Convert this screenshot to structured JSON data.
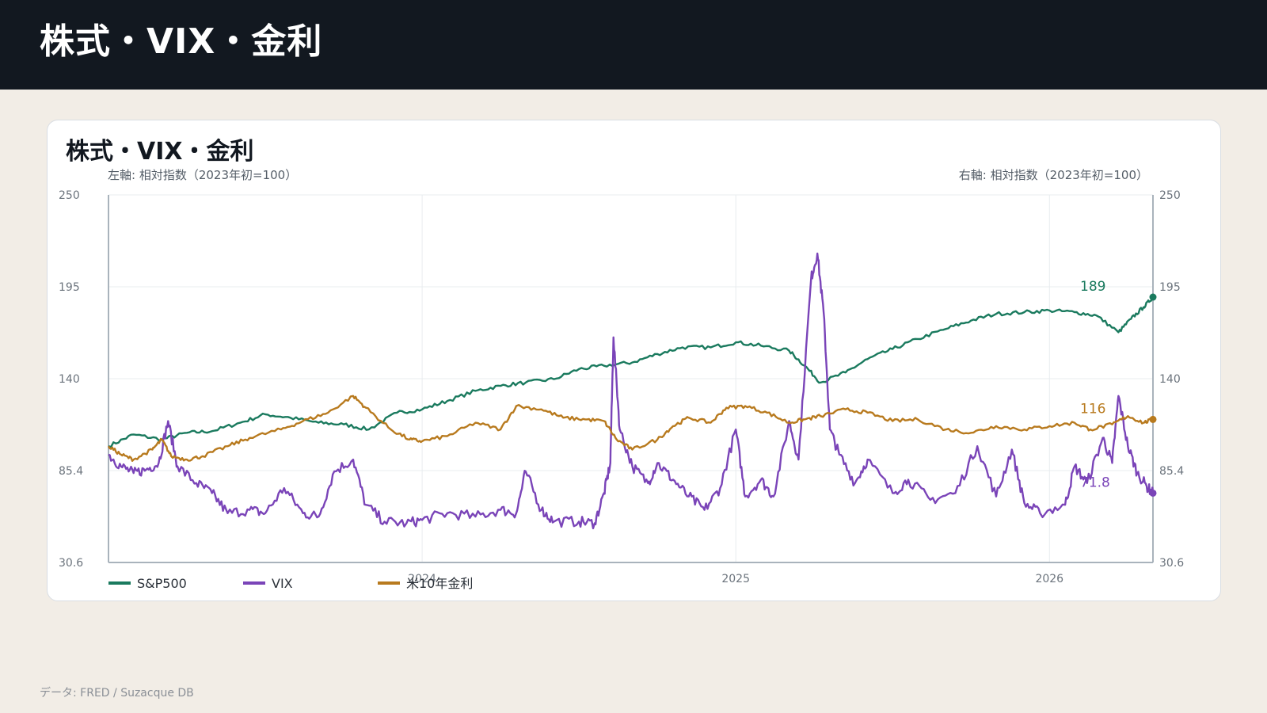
{
  "header": {
    "title": "株式・VIX・金利"
  },
  "card": {
    "title": "株式・VIX・金利",
    "left_axis_label": "左軸: 相対指数（2023年初=100）",
    "right_axis_label": "右軸: 相対指数（2023年初=100）"
  },
  "footer": {
    "source": "データ: FRED / Suzacque DB"
  },
  "colors": {
    "sp500": "#1a7a5e",
    "vix": "#7a44b8",
    "us10y": "#b87a1e",
    "grid": "#e8ecef",
    "axis": "#a9b3bc"
  },
  "chart_data": {
    "type": "line",
    "title": "株式・VIX・金利",
    "ylabel_left": "左軸: 相対指数（2023年初=100）",
    "ylabel_right": "右軸: 相対指数（2023年初=100）",
    "ylim": [
      30.6,
      250
    ],
    "y_ticks": [
      "30.6",
      "85.4",
      "140",
      "195",
      "250"
    ],
    "x_range": [
      "2023-01",
      "2026-04"
    ],
    "x_ticks": [
      {
        "t": 2024.0,
        "label": "2024"
      },
      {
        "t": 2025.0,
        "label": "2025"
      },
      {
        "t": 2026.0,
        "label": "2026"
      }
    ],
    "legend_position": "bottom-left",
    "grid": true,
    "series": [
      {
        "name": "S&P500",
        "key": "sp500",
        "end_label": "189",
        "points": [
          [
            2023.0,
            100
          ],
          [
            2023.08,
            107
          ],
          [
            2023.17,
            104
          ],
          [
            2023.25,
            108
          ],
          [
            2023.33,
            109
          ],
          [
            2023.42,
            114
          ],
          [
            2023.5,
            119
          ],
          [
            2023.58,
            117
          ],
          [
            2023.67,
            114
          ],
          [
            2023.75,
            113
          ],
          [
            2023.83,
            110
          ],
          [
            2023.92,
            120
          ],
          [
            2024.0,
            122
          ],
          [
            2024.08,
            127
          ],
          [
            2024.17,
            133
          ],
          [
            2024.25,
            136
          ],
          [
            2024.33,
            138
          ],
          [
            2024.42,
            140
          ],
          [
            2024.5,
            146
          ],
          [
            2024.58,
            148
          ],
          [
            2024.67,
            150
          ],
          [
            2024.75,
            155
          ],
          [
            2024.83,
            159
          ],
          [
            2024.92,
            159
          ],
          [
            2025.0,
            162
          ],
          [
            2025.08,
            160
          ],
          [
            2025.17,
            157
          ],
          [
            2025.22,
            148
          ],
          [
            2025.27,
            138
          ],
          [
            2025.35,
            144
          ],
          [
            2025.42,
            152
          ],
          [
            2025.5,
            158
          ],
          [
            2025.58,
            164
          ],
          [
            2025.67,
            170
          ],
          [
            2025.75,
            175
          ],
          [
            2025.83,
            179
          ],
          [
            2025.92,
            180
          ],
          [
            2026.0,
            181
          ],
          [
            2026.08,
            180
          ],
          [
            2026.15,
            178
          ],
          [
            2026.22,
            168
          ],
          [
            2026.26,
            176
          ],
          [
            2026.3,
            183
          ],
          [
            2026.33,
            189
          ]
        ]
      },
      {
        "name": "VIX",
        "key": "vix",
        "end_label": "71.8",
        "points": [
          [
            2023.0,
            95
          ],
          [
            2023.04,
            88
          ],
          [
            2023.08,
            84
          ],
          [
            2023.12,
            86
          ],
          [
            2023.16,
            90
          ],
          [
            2023.19,
            115
          ],
          [
            2023.22,
            88
          ],
          [
            2023.28,
            78
          ],
          [
            2023.33,
            72
          ],
          [
            2023.38,
            60
          ],
          [
            2023.45,
            62
          ],
          [
            2023.5,
            60
          ],
          [
            2023.56,
            75
          ],
          [
            2023.62,
            60
          ],
          [
            2023.67,
            58
          ],
          [
            2023.72,
            85
          ],
          [
            2023.78,
            92
          ],
          [
            2023.82,
            65
          ],
          [
            2023.88,
            55
          ],
          [
            2023.95,
            54
          ],
          [
            2024.0,
            56
          ],
          [
            2024.08,
            60
          ],
          [
            2024.17,
            58
          ],
          [
            2024.25,
            62
          ],
          [
            2024.3,
            60
          ],
          [
            2024.33,
            85
          ],
          [
            2024.38,
            62
          ],
          [
            2024.42,
            55
          ],
          [
            2024.5,
            55
          ],
          [
            2024.55,
            54
          ],
          [
            2024.58,
            72
          ],
          [
            2024.6,
            90
          ],
          [
            2024.61,
            165
          ],
          [
            2024.63,
            110
          ],
          [
            2024.67,
            88
          ],
          [
            2024.72,
            78
          ],
          [
            2024.75,
            90
          ],
          [
            2024.8,
            80
          ],
          [
            2024.85,
            70
          ],
          [
            2024.9,
            62
          ],
          [
            2024.95,
            75
          ],
          [
            2025.0,
            110
          ],
          [
            2025.03,
            70
          ],
          [
            2025.08,
            80
          ],
          [
            2025.12,
            70
          ],
          [
            2025.17,
            115
          ],
          [
            2025.2,
            92
          ],
          [
            2025.24,
            200
          ],
          [
            2025.26,
            215
          ],
          [
            2025.28,
            180
          ],
          [
            2025.3,
            110
          ],
          [
            2025.33,
            95
          ],
          [
            2025.38,
            78
          ],
          [
            2025.42,
            92
          ],
          [
            2025.5,
            72
          ],
          [
            2025.55,
            80
          ],
          [
            2025.62,
            68
          ],
          [
            2025.7,
            72
          ],
          [
            2025.77,
            100
          ],
          [
            2025.83,
            70
          ],
          [
            2025.88,
            98
          ],
          [
            2025.92,
            66
          ],
          [
            2025.97,
            60
          ],
          [
            2026.05,
            65
          ],
          [
            2026.08,
            88
          ],
          [
            2026.12,
            78
          ],
          [
            2026.17,
            105
          ],
          [
            2026.2,
            90
          ],
          [
            2026.22,
            130
          ],
          [
            2026.25,
            100
          ],
          [
            2026.28,
            84
          ],
          [
            2026.31,
            76
          ],
          [
            2026.33,
            72
          ]
        ]
      },
      {
        "name": "米10年金利",
        "key": "us10y",
        "end_label": "116",
        "points": [
          [
            2023.0,
            100
          ],
          [
            2023.04,
            95
          ],
          [
            2023.08,
            92
          ],
          [
            2023.14,
            98
          ],
          [
            2023.17,
            104
          ],
          [
            2023.2,
            94
          ],
          [
            2023.25,
            92
          ],
          [
            2023.3,
            94
          ],
          [
            2023.38,
            100
          ],
          [
            2023.45,
            105
          ],
          [
            2023.55,
            110
          ],
          [
            2023.62,
            115
          ],
          [
            2023.7,
            120
          ],
          [
            2023.78,
            130
          ],
          [
            2023.82,
            123
          ],
          [
            2023.9,
            110
          ],
          [
            2023.96,
            104
          ],
          [
            2024.0,
            103
          ],
          [
            2024.08,
            106
          ],
          [
            2024.17,
            114
          ],
          [
            2024.25,
            110
          ],
          [
            2024.3,
            124
          ],
          [
            2024.38,
            122
          ],
          [
            2024.45,
            117
          ],
          [
            2024.52,
            116
          ],
          [
            2024.58,
            115
          ],
          [
            2024.62,
            104
          ],
          [
            2024.67,
            98
          ],
          [
            2024.75,
            104
          ],
          [
            2024.8,
            112
          ],
          [
            2024.85,
            117
          ],
          [
            2024.92,
            114
          ],
          [
            2024.97,
            123
          ],
          [
            2025.03,
            124
          ],
          [
            2025.1,
            120
          ],
          [
            2025.17,
            114
          ],
          [
            2025.22,
            116
          ],
          [
            2025.27,
            118
          ],
          [
            2025.35,
            122
          ],
          [
            2025.42,
            120
          ],
          [
            2025.5,
            115
          ],
          [
            2025.58,
            116
          ],
          [
            2025.67,
            110
          ],
          [
            2025.75,
            108
          ],
          [
            2025.83,
            112
          ],
          [
            2025.92,
            110
          ],
          [
            2026.0,
            112
          ],
          [
            2026.08,
            114
          ],
          [
            2026.13,
            110
          ],
          [
            2026.2,
            113
          ],
          [
            2026.25,
            118
          ],
          [
            2026.3,
            114
          ],
          [
            2026.33,
            116
          ]
        ]
      }
    ]
  }
}
